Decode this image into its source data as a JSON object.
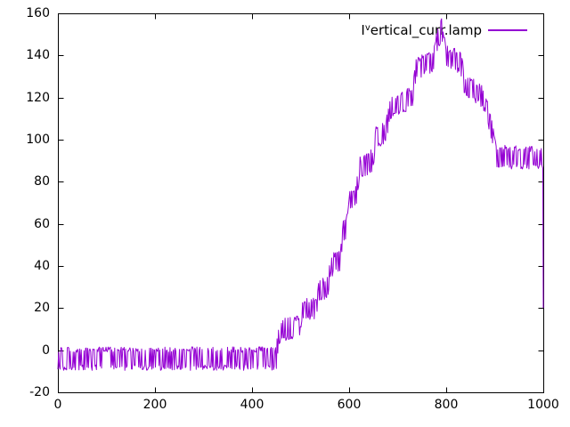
{
  "legend": {
    "label_prefix": "I",
    "label_sup": "v",
    "label_rest": "ertical_curr.lamp"
  },
  "chart_data": {
    "type": "line",
    "title": "",
    "xlabel": "",
    "ylabel": "",
    "xlim": [
      0,
      1000
    ],
    "ylim": [
      -20,
      160
    ],
    "xticks": [
      0,
      200,
      400,
      600,
      800,
      1000
    ],
    "yticks": [
      -20,
      0,
      20,
      40,
      60,
      80,
      100,
      120,
      140,
      160
    ],
    "grid": false,
    "legend_position": "top-right-inside",
    "border_color": "#000000",
    "background": "#ffffff",
    "series": [
      {
        "name": "I^vertical_curr.lamp",
        "color": "#9400d3",
        "description": "noisy telemetry: flat band near -4 until x=450, quantized staircase ramp to spike ~153 at x=790, stepped descent to plateau ~91 from x=905, vertical drop to 20 at x=1000",
        "noise": {
          "amplitude": 4.3,
          "jitter": 2.6,
          "toggle_probability": 0.55,
          "sample_step": 1.5,
          "seed": 11
        },
        "profile_keypoints": [
          [
            0,
            -4
          ],
          [
            450,
            -4
          ],
          [
            453,
            4
          ],
          [
            458,
            9
          ],
          [
            470,
            10
          ],
          [
            497,
            11
          ],
          [
            503,
            19
          ],
          [
            532,
            20
          ],
          [
            538,
            28
          ],
          [
            556,
            30
          ],
          [
            562,
            40
          ],
          [
            582,
            43
          ],
          [
            588,
            57
          ],
          [
            596,
            59
          ],
          [
            601,
            71
          ],
          [
            614,
            73
          ],
          [
            621,
            86
          ],
          [
            648,
            90
          ],
          [
            655,
            101
          ],
          [
            676,
            104
          ],
          [
            684,
            115
          ],
          [
            730,
            120
          ],
          [
            738,
            133
          ],
          [
            773,
            138
          ],
          [
            780,
            145
          ],
          [
            790,
            153
          ],
          [
            795,
            145
          ],
          [
            800,
            139
          ],
          [
            830,
            137
          ],
          [
            839,
            125
          ],
          [
            868,
            122
          ],
          [
            880,
            118
          ],
          [
            895,
            104
          ],
          [
            903,
            92
          ],
          [
            1000,
            91
          ]
        ],
        "last_point": [
          1000,
          20
        ]
      }
    ]
  }
}
